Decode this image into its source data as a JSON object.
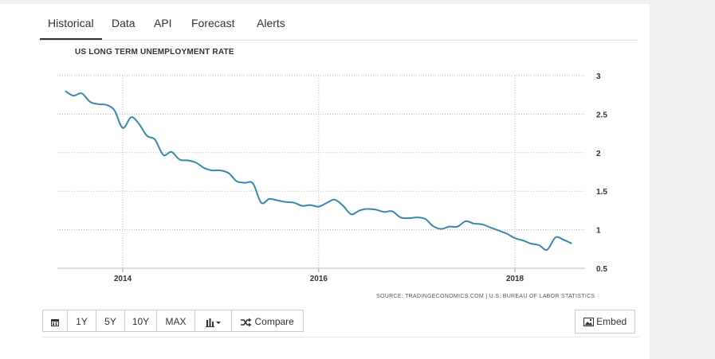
{
  "tabs": [
    "Historical",
    "Data",
    "API",
    "Forecast",
    "Alerts"
  ],
  "active_tab": "Historical",
  "toolbar": {
    "calendar_icon": "calendar-icon",
    "ranges": [
      "1Y",
      "5Y",
      "10Y",
      "MAX"
    ],
    "chart_type_icon": "bar-chart-icon",
    "compare_label": "Compare",
    "compare_icon": "shuffle-icon",
    "embed_label": "Embed",
    "embed_icon": "image-icon"
  },
  "source": "SOURCE: TRADINGECONOMICS.COM | U.S. BUREAU OF LABOR STATISTICS",
  "chart_data": {
    "type": "line",
    "title": "US LONG TERM UNEMPLOYMENT RATE",
    "xlabel": "",
    "ylabel": "",
    "x_ticks": [
      "2014",
      "2016",
      "2018"
    ],
    "y_ticks": [
      0.5,
      1,
      1.5,
      2,
      2.5,
      3
    ],
    "ylim": [
      0.5,
      3
    ],
    "grid": true,
    "line_color": "#3a87ad",
    "series": [
      {
        "x": [
          "2013-06",
          "2013-07",
          "2013-08",
          "2013-09",
          "2013-10",
          "2013-11",
          "2013-12",
          "2014-01",
          "2014-02",
          "2014-03",
          "2014-04",
          "2014-05",
          "2014-06",
          "2014-07",
          "2014-08",
          "2014-09",
          "2014-10",
          "2014-11",
          "2014-12",
          "2015-01",
          "2015-02",
          "2015-03",
          "2015-04",
          "2015-05",
          "2015-06",
          "2015-07",
          "2015-08",
          "2015-09",
          "2015-10",
          "2015-11",
          "2015-12",
          "2016-01",
          "2016-02",
          "2016-03",
          "2016-04",
          "2016-05",
          "2016-06",
          "2016-07",
          "2016-08",
          "2016-09",
          "2016-10",
          "2016-11",
          "2016-12",
          "2017-01",
          "2017-02",
          "2017-03",
          "2017-04",
          "2017-05",
          "2017-06",
          "2017-07",
          "2017-08",
          "2017-09",
          "2017-10",
          "2017-11",
          "2017-12",
          "2018-01",
          "2018-02",
          "2018-03",
          "2018-04",
          "2018-05",
          "2018-06",
          "2018-07",
          "2018-08"
        ],
        "values": [
          2.8,
          2.74,
          2.77,
          2.66,
          2.63,
          2.62,
          2.55,
          2.32,
          2.46,
          2.38,
          2.22,
          2.17,
          1.97,
          2.01,
          1.91,
          1.9,
          1.87,
          1.8,
          1.77,
          1.77,
          1.73,
          1.63,
          1.61,
          1.6,
          1.35,
          1.4,
          1.38,
          1.36,
          1.35,
          1.31,
          1.32,
          1.3,
          1.35,
          1.39,
          1.31,
          1.2,
          1.25,
          1.27,
          1.26,
          1.23,
          1.24,
          1.16,
          1.15,
          1.16,
          1.14,
          1.05,
          1.01,
          1.04,
          1.04,
          1.11,
          1.08,
          1.07,
          1.03,
          0.99,
          0.95,
          0.89,
          0.86,
          0.82,
          0.8,
          0.74,
          0.9,
          0.87,
          0.82
        ]
      }
    ]
  }
}
